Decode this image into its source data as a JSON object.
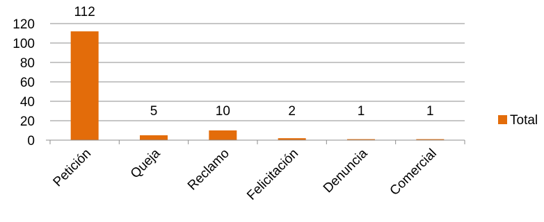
{
  "chart_data": {
    "type": "bar",
    "categories": [
      "Petición",
      "Queja",
      "Reclamo",
      "Felicitación",
      "Denuncia",
      "Comercial"
    ],
    "series": [
      {
        "name": "Total",
        "values": [
          112,
          5,
          10,
          2,
          1,
          1
        ],
        "color": "#E36C0A"
      }
    ],
    "data_labels": [
      "112",
      "5",
      "10",
      "2",
      "1",
      "1"
    ],
    "y_ticks": [
      "0",
      "20",
      "40",
      "60",
      "80",
      "100",
      "120"
    ],
    "ylim": [
      0,
      120
    ],
    "grid": true,
    "legend_position": "right",
    "x_tick_rotation": "diagonal",
    "title": "",
    "xlabel": "",
    "ylabel": ""
  }
}
